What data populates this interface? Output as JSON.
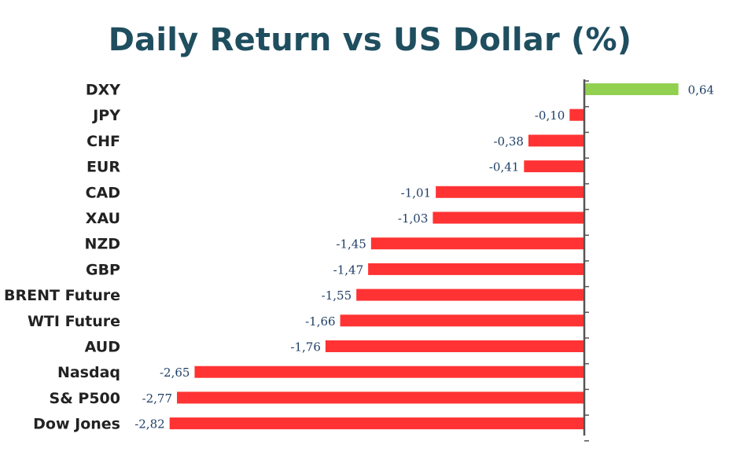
{
  "title": "Daily Return vs US Dollar (%)",
  "chart_data": {
    "type": "bar",
    "orientation": "horizontal",
    "title": "Daily Return vs US Dollar (%)",
    "xlabel": "",
    "ylabel": "",
    "categories": [
      "DXY",
      "JPY",
      "CHF",
      "EUR",
      "CAD",
      "XAU",
      "NZD",
      "GBP",
      "BRENT Future",
      "WTI Future",
      "AUD",
      "Nasdaq",
      "S& P500",
      "Dow Jones"
    ],
    "values": [
      0.64,
      -0.1,
      -0.38,
      -0.41,
      -1.01,
      -1.03,
      -1.45,
      -1.47,
      -1.55,
      -1.66,
      -1.76,
      -2.65,
      -2.77,
      -2.82
    ],
    "data_labels": [
      "0,64",
      "-0,10",
      "-0,38",
      "-0,41",
      "-1,01",
      "-1,03",
      "-1,45",
      "-1,47",
      "-1,55",
      "-1,66",
      "-1,76",
      "-2,65",
      "-2,77",
      "-2,82"
    ],
    "xlim": [
      -2.82,
      0.64
    ],
    "grid": false,
    "legend": "none",
    "colors": {
      "positive": "#92d050",
      "negative": "#ff3333",
      "axis": "#555555",
      "label": "#1f3f66"
    }
  }
}
